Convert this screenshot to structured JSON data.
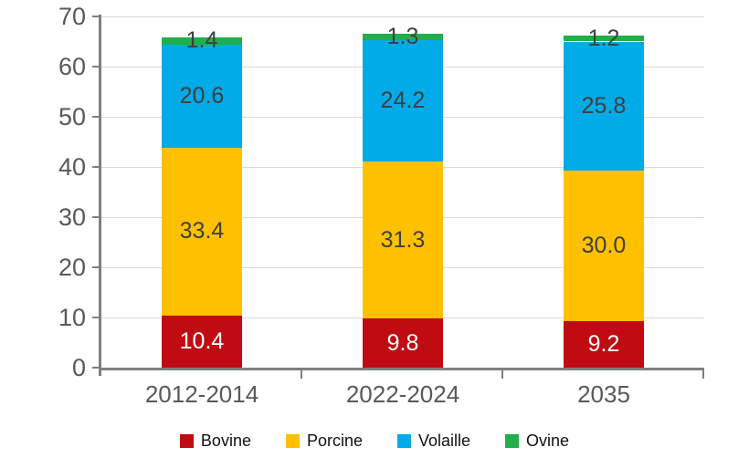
{
  "chart_data": {
    "type": "bar",
    "stacked": true,
    "title": "",
    "xlabel": "",
    "ylabel": "",
    "categories": [
      "2012-2014",
      "2022-2024",
      "2035"
    ],
    "series": [
      {
        "name": "Bovine",
        "color": "#c00b12",
        "label_color": "#ffffff",
        "values": [
          10.4,
          9.8,
          9.2
        ],
        "labels": [
          "10.4",
          "9.8",
          "9.2"
        ]
      },
      {
        "name": "Porcine",
        "color": "#ffc000",
        "label_color": "#3f3f3f",
        "values": [
          33.4,
          31.3,
          30.0
        ],
        "labels": [
          "33.4",
          "31.3",
          "30.0"
        ]
      },
      {
        "name": "Volaille",
        "color": "#00abe8",
        "label_color": "#3f3f3f",
        "values": [
          20.6,
          24.2,
          25.8
        ],
        "labels": [
          "20.6",
          "24.2",
          "25.8"
        ]
      },
      {
        "name": "Ovine",
        "color": "#21ae4b",
        "label_color": "#3f3f3f",
        "values": [
          1.4,
          1.3,
          1.2
        ],
        "labels": [
          "1.4",
          "1.3",
          "1.2"
        ]
      }
    ],
    "ylim": [
      0,
      70
    ],
    "yticks": [
      0,
      10,
      20,
      30,
      40,
      50,
      60,
      70
    ],
    "grid": true,
    "legend_position": "bottom",
    "colors": {
      "axis": "#7f7f7f",
      "gridline": "#d9d9d9",
      "tick_text": "#595959",
      "background": "#ffffff"
    }
  }
}
